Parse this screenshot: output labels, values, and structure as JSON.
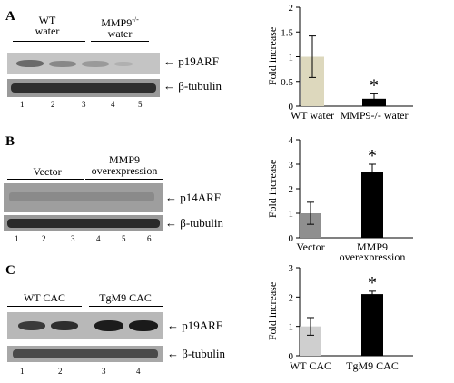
{
  "panels": [
    {
      "letter": "A",
      "blot": {
        "groups": [
          {
            "line1": "WT",
            "line2": "water"
          },
          {
            "line1": "MMP9",
            "sup": "-/-",
            "line2": "water"
          }
        ],
        "rows": [
          {
            "protein": "p19ARF"
          },
          {
            "protein": "β-tubulin"
          }
        ],
        "lanes": [
          "1",
          "2",
          "3",
          "4",
          "5"
        ]
      }
    },
    {
      "letter": "B",
      "blot": {
        "groups": [
          {
            "line1": "Vector"
          },
          {
            "line1": "MMP9",
            "line2": "overexpression"
          }
        ],
        "rows": [
          {
            "protein": "p14ARF"
          },
          {
            "protein": "β-tubulin"
          }
        ],
        "lanes": [
          "1",
          "2",
          "3",
          "4",
          "5",
          "6"
        ]
      }
    },
    {
      "letter": "C",
      "blot": {
        "groups": [
          {
            "line1": "WT CAC"
          },
          {
            "line1": "TgM9 CAC"
          }
        ],
        "rows": [
          {
            "protein": "p19ARF"
          },
          {
            "protein": "β-tubulin"
          }
        ],
        "lanes": [
          "1",
          "2",
          "3",
          "4"
        ]
      }
    }
  ],
  "chart_data": [
    {
      "type": "bar",
      "ylabel": "Fold increase",
      "ylim": [
        0,
        2
      ],
      "yticks": [
        "0",
        "0.5",
        "1",
        "1.5",
        "2"
      ],
      "categories": [
        "WT water",
        "MMP9-/- water"
      ],
      "values": [
        1.0,
        0.15
      ],
      "errors": [
        0.42,
        0.1
      ],
      "colors": [
        "#ddd8bd",
        "#000000"
      ],
      "significance": "*"
    },
    {
      "type": "bar",
      "ylabel": "Fold increase",
      "ylim": [
        0,
        4
      ],
      "yticks": [
        "0",
        "1",
        "2",
        "3",
        "4"
      ],
      "categories": [
        "Vector",
        "MMP9 overexpression"
      ],
      "values": [
        1.0,
        2.7
      ],
      "errors": [
        0.45,
        0.3
      ],
      "colors": [
        "#8f8f8f",
        "#000000"
      ],
      "significance": "*"
    },
    {
      "type": "bar",
      "ylabel": "Fold increase",
      "ylim": [
        0,
        3
      ],
      "yticks": [
        "0",
        "1",
        "2",
        "3"
      ],
      "categories": [
        "WT CAC",
        "TgM9 CAC"
      ],
      "values": [
        1.0,
        2.1
      ],
      "errors": [
        0.3,
        0.1
      ],
      "colors": [
        "#cfcfcf",
        "#000000"
      ],
      "significance": "*"
    }
  ]
}
